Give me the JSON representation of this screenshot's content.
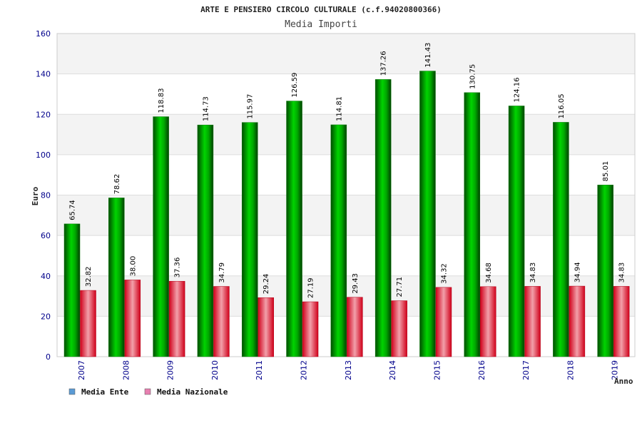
{
  "chart_data": {
    "type": "bar",
    "title": "ARTE E PENSIERO CIRCOLO CULTURALE (c.f.94020800366)",
    "subtitle": "Media Importi",
    "xlabel": "Anno",
    "ylabel": "Euro",
    "ylim": [
      0,
      160
    ],
    "yticks": [
      0,
      20,
      40,
      60,
      80,
      100,
      120,
      140,
      160
    ],
    "grid": true,
    "legend_position": "bottom-left",
    "categories": [
      "2007",
      "2008",
      "2009",
      "2010",
      "2011",
      "2012",
      "2013",
      "2014",
      "2015",
      "2016",
      "2017",
      "2018",
      "2019"
    ],
    "series": [
      {
        "name": "Media Ente",
        "values": [
          65.74,
          78.62,
          118.83,
          114.73,
          115.97,
          126.59,
          114.81,
          137.26,
          141.43,
          130.75,
          124.16,
          116.05,
          85.01
        ],
        "labels": [
          "65.74",
          "78.62",
          "118.83",
          "114.73",
          "115.97",
          "126.59",
          "114.81",
          "137.26",
          "141.43",
          "130.75",
          "124.16",
          "116.05",
          "85.01"
        ],
        "color": "#00c000",
        "legend_color": "#5b9bd5"
      },
      {
        "name": "Media Nazionale",
        "values": [
          32.82,
          38.0,
          37.36,
          34.79,
          29.24,
          27.19,
          29.43,
          27.71,
          34.32,
          34.68,
          34.83,
          34.94,
          34.83
        ],
        "labels": [
          "32.82",
          "38.00",
          "37.36",
          "34.79",
          "29.24",
          "27.19",
          "29.43",
          "27.71",
          "34.32",
          "34.68",
          "34.83",
          "34.94",
          "34.83"
        ],
        "color": "#e8001c",
        "legend_color": "#e77fb0"
      }
    ]
  }
}
